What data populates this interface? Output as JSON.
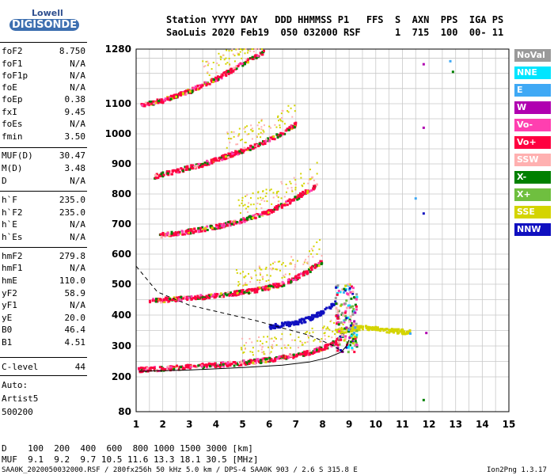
{
  "logo": {
    "line1": "Lowell",
    "line2": "DIGISONDE"
  },
  "header": {
    "line1": "Station YYYY DAY   DDD HHMMSS P1   FFS  S  AXN  PPS  IGA PS",
    "line2": "SaoLuis 2020 Feb19  050 032000 RSF      1  715  100  00- 11"
  },
  "params": [
    {
      "k": "foF2",
      "v": "8.750"
    },
    {
      "k": "foF1",
      "v": "N/A"
    },
    {
      "k": "foF1p",
      "v": "N/A"
    },
    {
      "k": "foE",
      "v": "N/A"
    },
    {
      "k": "foEp",
      "v": "0.38"
    },
    {
      "k": "fxI",
      "v": "9.45"
    },
    {
      "k": "foEs",
      "v": "N/A"
    },
    {
      "k": "fmin",
      "v": "3.50"
    },
    {
      "k": "MUF(D)",
      "v": "30.47"
    },
    {
      "k": "M(D)",
      "v": "3.48"
    },
    {
      "k": "D",
      "v": "N/A"
    },
    {
      "k": "h`F",
      "v": "235.0"
    },
    {
      "k": "h`F2",
      "v": "235.0"
    },
    {
      "k": "h`E",
      "v": "N/A"
    },
    {
      "k": "h`Es",
      "v": "N/A"
    },
    {
      "k": "hmF2",
      "v": "279.8"
    },
    {
      "k": "hmF1",
      "v": "N/A"
    },
    {
      "k": "hmE",
      "v": "110.0"
    },
    {
      "k": "yF2",
      "v": "58.9"
    },
    {
      "k": "yF1",
      "v": "N/A"
    },
    {
      "k": "yE",
      "v": "20.0"
    },
    {
      "k": "B0",
      "v": "46.4"
    },
    {
      "k": "B1",
      "v": "4.51"
    },
    {
      "k": "C-level",
      "v": "44"
    }
  ],
  "auto": {
    "line1": "Auto:",
    "line2": "Artist5",
    "line3": "500200"
  },
  "legend": [
    {
      "label": "NoVal",
      "color": "#9a9a9a"
    },
    {
      "label": "NNE",
      "color": "#00e5ff"
    },
    {
      "label": "E",
      "color": "#3fa9f5"
    },
    {
      "label": "W",
      "color": "#b000b0"
    },
    {
      "label": "Vo-",
      "color": "#ff3fb0"
    },
    {
      "label": "Vo+",
      "color": "#ff0040"
    },
    {
      "label": "SSW",
      "color": "#ffb0b0"
    },
    {
      "label": "X-",
      "color": "#008000"
    },
    {
      "label": "X+",
      "color": "#6fbf3f"
    },
    {
      "label": "SSE",
      "color": "#d4d400"
    },
    {
      "label": "NNW",
      "color": "#1010c0"
    }
  ],
  "chart_data": {
    "type": "scatter",
    "xlim": [
      1,
      15
    ],
    "x_ticks": [
      1,
      2,
      3,
      4,
      5,
      6,
      7,
      8,
      9,
      10,
      11,
      12,
      13,
      14,
      15
    ],
    "y_ticks": [
      80,
      200,
      300,
      400,
      500,
      600,
      700,
      800,
      900,
      1000,
      1100,
      1280
    ],
    "grid": true,
    "traces": [
      {
        "color": "#ff0040",
        "x": [
          1.1,
          2.0,
          3.0,
          4.0,
          5.0,
          6.0,
          7.0,
          7.5,
          8.0,
          8.5,
          8.8
        ],
        "y": [
          222,
          226,
          232,
          238,
          245,
          255,
          268,
          278,
          292,
          312,
          340
        ]
      },
      {
        "color": "#ff0040",
        "x": [
          1.5,
          2.5,
          3.5,
          4.5,
          5.5,
          6.5,
          7.0,
          7.5,
          8.0
        ],
        "y": [
          445,
          452,
          458,
          468,
          480,
          500,
          520,
          545,
          575
        ]
      },
      {
        "color": "#ff0040",
        "x": [
          1.9,
          3.0,
          4.0,
          5.0,
          6.0,
          7.0,
          7.8
        ],
        "y": [
          662,
          675,
          690,
          712,
          740,
          785,
          830
        ]
      },
      {
        "color": "#ff0040",
        "x": [
          1.7,
          2.5,
          3.5,
          4.5,
          5.5,
          6.5,
          7.0
        ],
        "y": [
          858,
          875,
          898,
          928,
          960,
          1000,
          1030
        ]
      },
      {
        "color": "#ff0040",
        "x": [
          1.2,
          2.0,
          3.0,
          4.0,
          5.0,
          5.8
        ],
        "y": [
          1095,
          1110,
          1140,
          1180,
          1230,
          1270
        ]
      },
      {
        "color": "#1010c0",
        "x": [
          6.0,
          6.5,
          7.0,
          7.5,
          8.0,
          8.5
        ],
        "y": [
          362,
          368,
          375,
          388,
          408,
          440
        ]
      },
      {
        "color": "#d4d400",
        "x": [
          8.5,
          9.0,
          9.5,
          10.0,
          10.5,
          11.0,
          11.3
        ],
        "y": [
          345,
          352,
          360,
          356,
          350,
          346,
          344
        ]
      }
    ],
    "curves": [
      {
        "style": "solid",
        "x": [
          1.1,
          3.0,
          5.0,
          6.5,
          7.5,
          8.2,
          8.7,
          8.9,
          9.0
        ],
        "y": [
          218,
          222,
          230,
          238,
          248,
          262,
          280,
          300,
          320
        ]
      },
      {
        "style": "dashed",
        "x": [
          1.0,
          1.8,
          3.0,
          4.2,
          5.5,
          6.5,
          7.5,
          8.3,
          8.8
        ],
        "y": [
          560,
          475,
          432,
          408,
          382,
          358,
          335,
          305,
          280
        ]
      }
    ],
    "isolated": [
      {
        "x": 11.8,
        "y": 1230,
        "color": "#b000b0"
      },
      {
        "x": 12.8,
        "y": 1240,
        "color": "#3fa9f5"
      },
      {
        "x": 12.9,
        "y": 1205,
        "color": "#008000"
      },
      {
        "x": 11.8,
        "y": 1020,
        "color": "#b000b0"
      },
      {
        "x": 11.5,
        "y": 785,
        "color": "#3fa9f5"
      },
      {
        "x": 11.8,
        "y": 735,
        "color": "#1010c0"
      },
      {
        "x": 11.3,
        "y": 340,
        "color": "#3fa9f5"
      },
      {
        "x": 11.9,
        "y": 342,
        "color": "#b000b0"
      },
      {
        "x": 11.8,
        "y": 120,
        "color": "#008000"
      }
    ]
  },
  "muf_table": {
    "row1": "D    100  200  400  600  800 1000 1500 3000 [km]",
    "row2": "MUF  9.1  9.2  9.7 10.5 11.6 13.3 18.1 30.5 [MHz]"
  },
  "footer": {
    "left": "SAA0K_2020050032000.RSF / 280fx256h 50 kHz 5.0 km / DPS-4 SAA0K 903 / 2.6 S 315.8 E",
    "right": "Ion2Png 1.3.17"
  }
}
